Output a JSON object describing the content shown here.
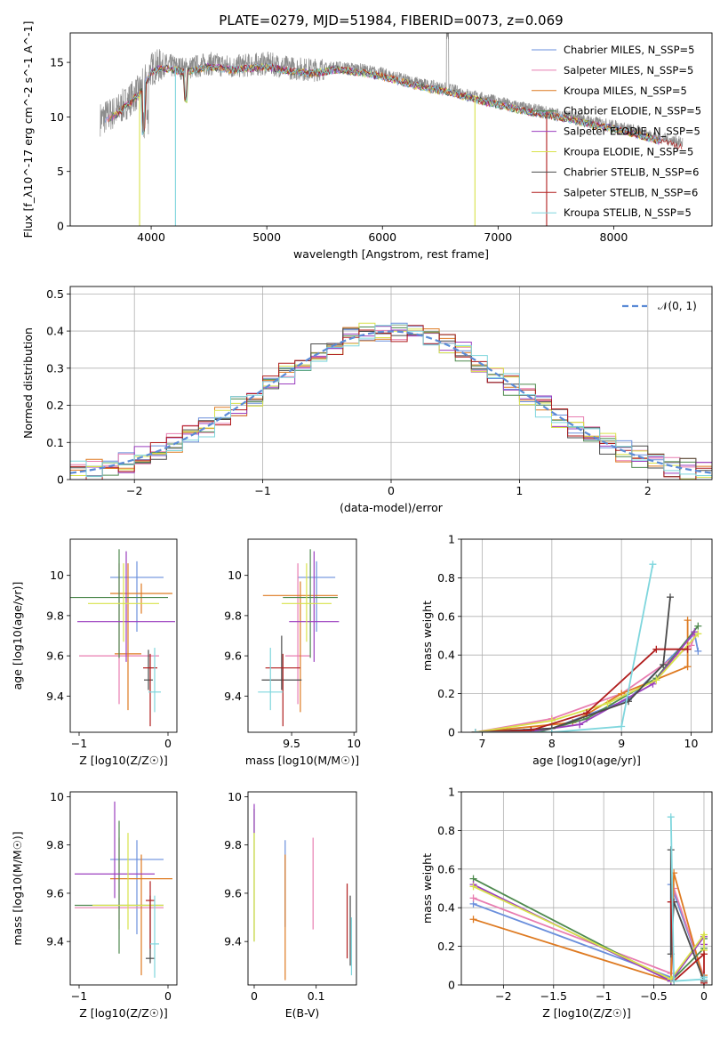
{
  "figure": {
    "title": "PLATE=0279, MJD=51984, FIBERID=0073, z=0.069"
  },
  "colors": {
    "Chabrier MILES": "#6a8fdc",
    "Salpeter MILES": "#e87db1",
    "Kroupa MILES": "#de7a21",
    "Chabrier ELODIE": "#4f8a4f",
    "Salpeter ELODIE": "#9b3fbf",
    "Kroupa ELODIE": "#d8e24a",
    "Chabrier STELIB": "#4a4a4a",
    "Salpeter STELIB": "#b01d1d",
    "Kroupa STELIB": "#7fd6dd",
    "data": "#8c8c8c"
  },
  "chart_data": [
    {
      "id": "spectrum",
      "type": "line",
      "xlabel": "wavelength [Angstrom, rest frame]",
      "ylabel": "Flux [f_λ10^-17 erg cm^-2 s^-1 A^-1]",
      "xlim": [
        3300,
        8850
      ],
      "ylim": [
        0,
        17.7
      ],
      "xticks": [
        4000,
        5000,
        6000,
        7000,
        8000
      ],
      "yticks": [
        0,
        5,
        10,
        15
      ],
      "grid": false,
      "legend_position": "top-right",
      "legend": [
        {
          "name": "Chabrier MILES, N_SSP=5"
        },
        {
          "name": "Salpeter MILES, N_SSP=5"
        },
        {
          "name": "Kroupa MILES, N_SSP=5"
        },
        {
          "name": "Chabrier ELODIE, N_SSP=5"
        },
        {
          "name": "Salpeter ELODIE, N_SSP=5"
        },
        {
          "name": "Kroupa ELODIE, N_SSP=5"
        },
        {
          "name": "Chabrier STELIB, N_SSP=6"
        },
        {
          "name": "Salpeter STELIB, N_SSP=6"
        },
        {
          "name": "Kroupa STELIB, N_SSP=5"
        }
      ],
      "data_envelope": {
        "x": [
          3560,
          3700,
          3900,
          4000,
          4100,
          4300,
          4500,
          4700,
          4900,
          5000,
          5200,
          5400,
          5600,
          5800,
          6000,
          6200,
          6400,
          6600,
          6800,
          7000,
          7200,
          7400,
          7600,
          7800,
          8000,
          8200,
          8400,
          8600
        ],
        "y": [
          9.8,
          10.5,
          12.4,
          14.4,
          14.8,
          14.4,
          14.9,
          14.6,
          14.8,
          14.9,
          14.5,
          14.3,
          14.6,
          14.4,
          14.0,
          13.4,
          12.9,
          12.5,
          11.9,
          11.4,
          10.9,
          10.5,
          10.1,
          9.6,
          9.2,
          8.7,
          8.1,
          7.6
        ]
      }
    },
    {
      "id": "residuals",
      "type": "line",
      "xlabel": "(data-model)/error",
      "ylabel": "Normed distribution",
      "xlim": [
        -2.5,
        2.5
      ],
      "ylim": [
        0,
        0.52
      ],
      "xticks": [
        -2,
        -1,
        0,
        1,
        2
      ],
      "yticks": [
        0.0,
        0.1,
        0.2,
        0.3,
        0.4,
        0.5
      ],
      "grid": true,
      "legend_position": "top-right",
      "legend": [
        {
          "name": "𝒩(0, 1)"
        }
      ],
      "normal": {
        "mean": 0,
        "sigma": 1
      }
    },
    {
      "id": "age-vs-Z",
      "type": "scatter",
      "xlabel": "Z [log10(Z/Z☉)]",
      "ylabel": "age  [log10(age/yr)]",
      "xlim": [
        -1.1,
        0.1
      ],
      "ylim": [
        9.22,
        10.18
      ],
      "xticks": [
        -1,
        0
      ],
      "yticks": [
        9.4,
        9.6,
        9.8,
        10.0
      ],
      "points": [
        {
          "model": "Chabrier MILES",
          "x": -0.35,
          "xerr": 0.3,
          "y": 9.99,
          "yerr": [
            0.27,
            0.08
          ]
        },
        {
          "model": "Salpeter MILES",
          "x": -0.55,
          "xerr": 0.45,
          "y": 9.6,
          "yerr": [
            0.24,
            0.46
          ]
        },
        {
          "model": "Kroupa MILES",
          "x": -0.45,
          "xerr": 0.15,
          "y": 9.61,
          "yerr": [
            0.28,
            0.45
          ]
        },
        {
          "model": "Kroupa MILES",
          "x": -0.3,
          "xerr": 0.35,
          "y": 9.91,
          "yerr": [
            0.1,
            0.05
          ]
        },
        {
          "model": "Chabrier ELODIE",
          "x": -0.55,
          "xerr": 0.55,
          "y": 9.89,
          "yerr": [
            0.3,
            0.24
          ]
        },
        {
          "model": "Salpeter ELODIE",
          "x": -0.47,
          "xerr": 0.55,
          "y": 9.77,
          "yerr": [
            0.2,
            0.35
          ]
        },
        {
          "model": "Kroupa ELODIE",
          "x": -0.5,
          "xerr": 0.4,
          "y": 9.86,
          "yerr": [
            0.19,
            0.2
          ]
        },
        {
          "model": "Chabrier STELIB",
          "x": -0.22,
          "xerr": 0.05,
          "y": 9.48,
          "yerr": [
            0.05,
            0.15
          ]
        },
        {
          "model": "Salpeter STELIB",
          "x": -0.2,
          "xerr": 0.08,
          "y": 9.54,
          "yerr": [
            0.29,
            0.07
          ]
        },
        {
          "model": "Kroupa STELIB",
          "x": -0.15,
          "xerr": 0.07,
          "y": 9.42,
          "yerr": [
            0.1,
            0.22
          ]
        }
      ]
    },
    {
      "id": "age-vs-mass",
      "type": "scatter",
      "xlabel": "mass [log10(M/M☉)]",
      "ylabel": "",
      "xlim": [
        9.15,
        10.02
      ],
      "ylim": [
        9.22,
        10.18
      ],
      "xticks": [
        9.5,
        10.0
      ],
      "yticks": [
        9.4,
        9.6,
        9.8,
        10.0
      ],
      "points": [
        {
          "model": "Chabrier MILES",
          "x": 9.7,
          "xerr": 0.15,
          "y": 9.99,
          "yerr": [
            0.27,
            0.08
          ]
        },
        {
          "model": "Salpeter MILES",
          "x": 9.55,
          "xerr": 0.1,
          "y": 9.6,
          "yerr": [
            0.24,
            0.46
          ]
        },
        {
          "model": "Kroupa MILES",
          "x": 9.57,
          "xerr": 0.3,
          "y": 9.9,
          "yerr": [
            0.58,
            0.07
          ]
        },
        {
          "model": "Chabrier ELODIE",
          "x": 9.65,
          "xerr": 0.22,
          "y": 9.89,
          "yerr": [
            0.3,
            0.24
          ]
        },
        {
          "model": "Salpeter ELODIE",
          "x": 9.68,
          "xerr": 0.2,
          "y": 9.77,
          "yerr": [
            0.2,
            0.35
          ]
        },
        {
          "model": "Kroupa ELODIE",
          "x": 9.62,
          "xerr": 0.2,
          "y": 9.86,
          "yerr": [
            0.19,
            0.2
          ]
        },
        {
          "model": "Chabrier STELIB",
          "x": 9.42,
          "xerr": 0.16,
          "y": 9.48,
          "yerr": [
            0.05,
            0.22
          ]
        },
        {
          "model": "Salpeter STELIB",
          "x": 9.43,
          "xerr": 0.14,
          "y": 9.54,
          "yerr": [
            0.29,
            0.07
          ]
        },
        {
          "model": "Kroupa STELIB",
          "x": 9.33,
          "xerr": 0.1,
          "y": 9.42,
          "yerr": [
            0.09,
            0.22
          ]
        }
      ]
    },
    {
      "id": "weight-vs-age",
      "type": "line",
      "xlabel": "age  [log10(age/yr)]",
      "ylabel": "mass weight",
      "xlim": [
        6.7,
        10.3
      ],
      "ylim": [
        0,
        1
      ],
      "xticks": [
        7,
        8,
        9,
        10
      ],
      "yticks": [
        0.0,
        0.2,
        0.4,
        0.6,
        0.8,
        1.0
      ],
      "grid": true,
      "series": [
        {
          "name": "Chabrier MILES",
          "x": [
            6.9,
            8.0,
            9.1,
            10.05,
            10.1
          ],
          "y": [
            0.0,
            0.02,
            0.17,
            0.51,
            0.42
          ]
        },
        {
          "name": "Salpeter MILES",
          "x": [
            6.9,
            8.0,
            9.0,
            10.0,
            10.05
          ],
          "y": [
            0.0,
            0.07,
            0.2,
            0.45,
            0.5
          ]
        },
        {
          "name": "Kroupa MILES",
          "x": [
            6.9,
            8.3,
            9.0,
            9.95,
            9.95
          ],
          "y": [
            0.0,
            0.05,
            0.2,
            0.34,
            0.58
          ]
        },
        {
          "name": "Chabrier ELODIE",
          "x": [
            6.9,
            7.8,
            8.5,
            9.5,
            10.1
          ],
          "y": [
            0.0,
            0.0,
            0.07,
            0.28,
            0.55
          ]
        },
        {
          "name": "Salpeter ELODIE",
          "x": [
            6.9,
            7.6,
            8.4,
            9.45,
            10.05
          ],
          "y": [
            0.0,
            0.0,
            0.04,
            0.25,
            0.52
          ]
        },
        {
          "name": "Kroupa ELODIE",
          "x": [
            6.9,
            8.0,
            8.8,
            9.5,
            10.1
          ],
          "y": [
            0.0,
            0.06,
            0.15,
            0.27,
            0.51
          ]
        },
        {
          "name": "Chabrier STELIB",
          "x": [
            6.9,
            8.0,
            9.1,
            9.6,
            9.7
          ],
          "y": [
            0.0,
            0.02,
            0.16,
            0.35,
            0.7
          ]
        },
        {
          "name": "Salpeter STELIB",
          "x": [
            6.9,
            7.7,
            8.5,
            9.5,
            9.95
          ],
          "y": [
            0.0,
            0.01,
            0.1,
            0.43,
            0.43
          ]
        },
        {
          "name": "Kroupa STELIB",
          "x": [
            6.9,
            8.0,
            9.0,
            9.45
          ],
          "y": [
            0.0,
            0.0,
            0.03,
            0.87
          ]
        }
      ]
    },
    {
      "id": "mass-vs-Z",
      "type": "scatter",
      "xlabel": "Z [log10(Z/Z☉)]",
      "ylabel": "mass [log10(M/M☉)]",
      "xlim": [
        -1.1,
        0.1
      ],
      "ylim": [
        9.22,
        10.02
      ],
      "xticks": [
        -1,
        0
      ],
      "yticks": [
        9.4,
        9.6,
        9.8,
        10.0
      ],
      "points": [
        {
          "model": "Chabrier MILES",
          "x": -0.35,
          "xerr": 0.3,
          "y": 9.74,
          "yerr": [
            0.31,
            0.08
          ]
        },
        {
          "model": "Salpeter MILES",
          "x": -0.55,
          "xerr": 0.5,
          "y": 9.54,
          "yerr": [
            0.09,
            0.29
          ]
        },
        {
          "model": "Kroupa MILES",
          "x": -0.3,
          "xerr": 0.35,
          "y": 9.66,
          "yerr": [
            0.4,
            0.1
          ]
        },
        {
          "model": "Chabrier ELODIE",
          "x": -0.55,
          "xerr": 0.5,
          "y": 9.55,
          "yerr": [
            0.2,
            0.35
          ]
        },
        {
          "model": "Salpeter ELODIE",
          "x": -0.6,
          "xerr": 0.45,
          "y": 9.68,
          "yerr": [
            0.1,
            0.3
          ]
        },
        {
          "model": "Kroupa ELODIE",
          "x": -0.45,
          "xerr": 0.4,
          "y": 9.55,
          "yerr": [
            0.1,
            0.3
          ]
        },
        {
          "model": "Chabrier STELIB",
          "x": -0.2,
          "xerr": 0.05,
          "y": 9.33,
          "yerr": [
            0.02,
            0.26
          ]
        },
        {
          "model": "Salpeter STELIB",
          "x": -0.2,
          "xerr": 0.05,
          "y": 9.57,
          "yerr": [
            0.2,
            0.08
          ]
        },
        {
          "model": "Kroupa STELIB",
          "x": -0.15,
          "xerr": 0.05,
          "y": 9.39,
          "yerr": [
            0.14,
            0.2
          ]
        }
      ]
    },
    {
      "id": "mass-vs-EBV",
      "type": "scatter",
      "xlabel": "E(B-V)",
      "ylabel": "",
      "xlim": [
        -0.01,
        0.165
      ],
      "ylim": [
        9.22,
        10.02
      ],
      "xticks": [
        0.0,
        0.1
      ],
      "yticks": [
        9.4,
        9.6,
        9.8,
        10.0
      ],
      "points": [
        {
          "model": "Chabrier MILES",
          "x": 0.05,
          "y": 9.76,
          "yerr": [
            0.3,
            0.06
          ]
        },
        {
          "model": "Salpeter MILES",
          "x": 0.095,
          "y": 9.8,
          "yerr": [
            0.35,
            0.03
          ]
        },
        {
          "model": "Kroupa MILES",
          "x": 0.05,
          "y": 9.7,
          "yerr": [
            0.46,
            0.06
          ]
        },
        {
          "model": "Chabrier ELODIE",
          "x": 0.0,
          "y": 9.85,
          "yerr": [
            0.45,
            0.1
          ]
        },
        {
          "model": "Salpeter ELODIE",
          "x": 0.0,
          "y": 9.92,
          "yerr": [
            0.07,
            0.05
          ]
        },
        {
          "model": "Kroupa ELODIE",
          "x": 0.0,
          "y": 9.7,
          "yerr": [
            0.3,
            0.15
          ]
        },
        {
          "model": "Chabrier STELIB",
          "x": 0.155,
          "y": 9.5,
          "yerr": [
            0.2,
            0.09
          ]
        },
        {
          "model": "Salpeter STELIB",
          "x": 0.15,
          "y": 9.5,
          "yerr": [
            0.17,
            0.14
          ]
        },
        {
          "model": "Kroupa STELIB",
          "x": 0.157,
          "y": 9.4,
          "yerr": [
            0.14,
            0.1
          ]
        }
      ]
    },
    {
      "id": "weight-vs-Z",
      "type": "line",
      "xlabel": "Z [log10(Z/Z☉)]",
      "ylabel": "mass weight",
      "xlim": [
        -2.42,
        0.08
      ],
      "ylim": [
        0,
        1
      ],
      "xticks": [
        -2.0,
        -1.5,
        -1.0,
        -0.5,
        0.0
      ],
      "yticks": [
        0.0,
        0.2,
        0.4,
        0.6,
        0.8,
        1.0
      ],
      "grid": true,
      "series": [
        {
          "name": "Chabrier MILES",
          "x": [
            -2.3,
            -0.33,
            -0.33,
            0.0,
            0.0
          ],
          "y": [
            0.42,
            0.04,
            0.52,
            0.04,
            0.02
          ]
        },
        {
          "name": "Salpeter MILES",
          "x": [
            -2.3,
            -0.33,
            -0.3,
            0.0,
            0.0
          ],
          "y": [
            0.45,
            0.06,
            0.5,
            0.04,
            0.02
          ]
        },
        {
          "name": "Kroupa MILES",
          "x": [
            -2.3,
            -0.33,
            -0.3,
            0.0,
            0.0
          ],
          "y": [
            0.34,
            0.02,
            0.58,
            0.02,
            0.05
          ]
        },
        {
          "name": "Chabrier ELODIE",
          "x": [
            -2.3,
            -0.33,
            0.0,
            0.0
          ],
          "y": [
            0.55,
            0.02,
            0.19,
            0.24
          ]
        },
        {
          "name": "Salpeter ELODIE",
          "x": [
            -2.3,
            -0.33,
            0.0,
            0.0
          ],
          "y": [
            0.52,
            0.02,
            0.25,
            0.21
          ]
        },
        {
          "name": "Kroupa ELODIE",
          "x": [
            -2.3,
            -0.33,
            0.0,
            0.0
          ],
          "y": [
            0.51,
            0.03,
            0.26,
            0.18
          ]
        },
        {
          "name": "Chabrier STELIB",
          "x": [
            -0.33,
            -0.33,
            -0.3,
            0.0,
            0.0
          ],
          "y": [
            0.7,
            0.16,
            0.43,
            0.02,
            0.04
          ]
        },
        {
          "name": "Salpeter STELIB",
          "x": [
            -0.33,
            -0.3,
            0.0,
            0.0
          ],
          "y": [
            0.43,
            0.02,
            0.16,
            0.01
          ]
        },
        {
          "name": "Kroupa STELIB",
          "x": [
            -0.33,
            -0.3,
            0.0,
            0.0
          ],
          "y": [
            0.87,
            0.02,
            0.03,
            0.04
          ]
        }
      ]
    }
  ]
}
